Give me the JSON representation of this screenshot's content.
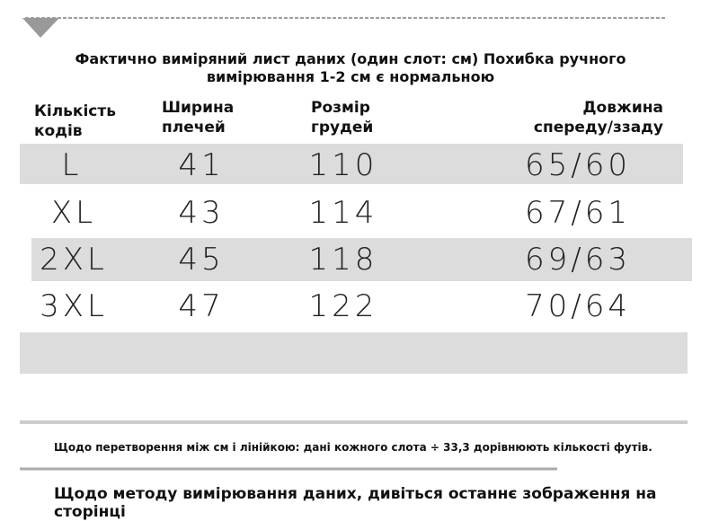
{
  "header": {
    "title_lines": [
      "Фактично виміряний лист даних (один слот: см) Похибка ручного",
      "вимірювання 1-2 см є нормальною"
    ]
  },
  "table": {
    "columns": [
      [
        "Кількість",
        "кодів"
      ],
      [
        "Ширина",
        "плечей"
      ],
      [
        "Розмір",
        "грудей"
      ],
      [
        "Довжина",
        "спереду/ззаду"
      ]
    ],
    "rows": [
      [
        "L",
        "41",
        "110",
        "65/60"
      ],
      [
        "XL",
        "43",
        "114",
        "67/61"
      ],
      [
        "2XL",
        "45",
        "118",
        "69/63"
      ],
      [
        "3XL",
        "47",
        "122",
        "70/64"
      ]
    ]
  },
  "notes": {
    "conversion": "Щодо перетворення між см і лінійкою: дані кожного слота ÷ 33,3 дорівнюють кількості футів.",
    "method": "Щодо методу вимірювання даних, дивіться останнє зображення на сторінці"
  }
}
